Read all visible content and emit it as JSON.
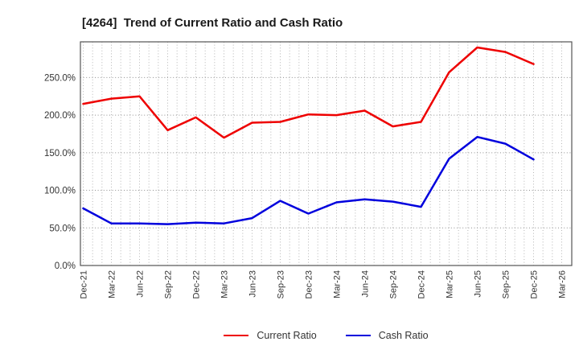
{
  "title": "[4264]  Trend of Current Ratio and Cash Ratio",
  "legend": {
    "items": [
      {
        "label": "Current Ratio",
        "color": "#ee0000"
      },
      {
        "label": "Cash Ratio",
        "color": "#0000dd"
      }
    ]
  },
  "chart_data": {
    "type": "line",
    "title": "[4264]  Trend of Current Ratio and Cash Ratio",
    "categories": [
      "Dec-21",
      "Mar-22",
      "Jun-22",
      "Sep-22",
      "Dec-22",
      "Mar-23",
      "Jun-23",
      "Sep-23",
      "Dec-23",
      "Mar-24",
      "Jun-24",
      "Sep-24",
      "Dec-24",
      "Mar-25",
      "Jun-25",
      "Sep-25",
      "Dec-25",
      "Mar-26"
    ],
    "series": [
      {
        "name": "Current Ratio",
        "color": "#ee0000",
        "values": [
          215,
          222,
          225,
          180,
          197,
          170,
          190,
          191,
          201,
          200,
          206,
          185,
          191,
          257,
          290,
          284,
          268
        ]
      },
      {
        "name": "Cash Ratio",
        "color": "#0000dd",
        "values": [
          76,
          56,
          56,
          55,
          57,
          56,
          63,
          86,
          69,
          84,
          88,
          85,
          78,
          142,
          171,
          162,
          141
        ]
      }
    ],
    "xlabel": "",
    "ylabel": "",
    "ylim": [
      0,
      297.5
    ],
    "yticks": [
      0,
      50,
      100,
      150,
      200,
      250
    ],
    "ytick_suffix": "%",
    "ytick_decimals": 1,
    "grid": true,
    "minor_vgrid_months_per_quarter": 3,
    "legend_position": "bottom-center",
    "colors": {
      "plot_border": "#555555",
      "hgrid": "#8f8f8f",
      "vgrid": "#b5b5b5",
      "tick_text": "#333333",
      "background": "#ffffff"
    }
  }
}
